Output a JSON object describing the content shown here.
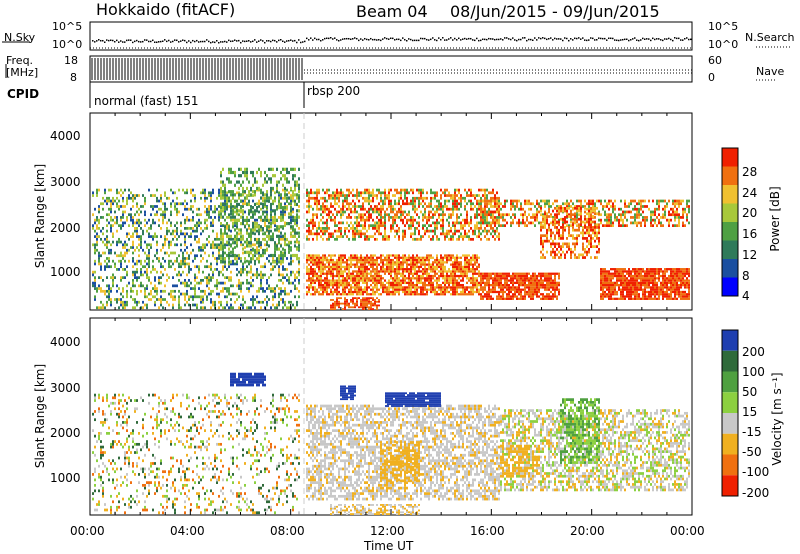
{
  "header": {
    "station": "Hokkaido (fitACF)",
    "beam": "Beam 04",
    "date_range": "08/Jun/2015 - 09/Jun/2015"
  },
  "top_panel": {
    "left_label": "N.Sky",
    "right_label": "N.Search",
    "left_ticks": [
      "10^5",
      "10^0"
    ],
    "right_ticks": [
      "10^5",
      "10^0"
    ]
  },
  "freq_panel": {
    "label_line1": "Freq.",
    "label_line2": "[MHz]",
    "left_ticks": [
      "18",
      "8"
    ],
    "right_label": "Nave",
    "right_ticks": [
      "60",
      "0"
    ]
  },
  "cpid_panel": {
    "label": "CPID",
    "modes": [
      "normal (fast) 151",
      "rbsp 200"
    ]
  },
  "chart_data": [
    {
      "type": "heatmap",
      "name": "power",
      "ylabel": "Slant Range [km]",
      "yticks": [
        "4000",
        "3000",
        "2000",
        "1000"
      ],
      "ylim": [
        180,
        4500
      ],
      "xticks": [
        "00:00",
        "04:00",
        "08:00",
        "12:00",
        "16:00",
        "20:00",
        "00:00"
      ],
      "colorbar": {
        "label": "Power [dB]",
        "tick_labels": [
          "28",
          "24",
          "20",
          "16",
          "12",
          "8",
          "4"
        ],
        "colors": [
          "#0000ff",
          "#1a4fa0",
          "#2f7a5a",
          "#4fa043",
          "#a8c83a",
          "#f0c030",
          "#f07010",
          "#f02000"
        ]
      }
    },
    {
      "type": "heatmap",
      "name": "velocity",
      "ylabel": "Slant Range [km]",
      "yticks": [
        "4000",
        "3000",
        "2000",
        "1000"
      ],
      "ylim": [
        180,
        4500
      ],
      "xticks": [
        "00:00",
        "04:00",
        "08:00",
        "12:00",
        "16:00",
        "20:00",
        "00:00"
      ],
      "xlabel": "Time UT",
      "colorbar": {
        "label": "Velocity [m s⁻¹]",
        "tick_labels": [
          "200",
          "100",
          "50",
          "15",
          "-15",
          "-50",
          "-100",
          "-200"
        ],
        "colors": [
          "#1f3fb0",
          "#2f6a3a",
          "#4fa040",
          "#8cd040",
          "#c8c8c8",
          "#f0b020",
          "#f07010",
          "#f02000"
        ]
      }
    }
  ]
}
